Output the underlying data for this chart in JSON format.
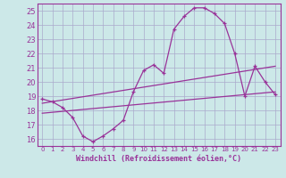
{
  "xlabel": "Windchill (Refroidissement éolien,°C)",
  "background_color": "#cce8e8",
  "grid_color": "#aaaacc",
  "line_color": "#993399",
  "xlim": [
    -0.5,
    23.5
  ],
  "ylim": [
    15.5,
    25.5
  ],
  "yticks": [
    16,
    17,
    18,
    19,
    20,
    21,
    22,
    23,
    24,
    25
  ],
  "xticks": [
    0,
    1,
    2,
    3,
    4,
    5,
    6,
    7,
    8,
    9,
    10,
    11,
    12,
    13,
    14,
    15,
    16,
    17,
    18,
    19,
    20,
    21,
    22,
    23
  ],
  "line1_x": [
    0,
    1,
    2,
    3,
    4,
    5,
    6,
    7,
    8,
    9,
    10,
    11,
    12,
    13,
    14,
    15,
    16,
    17,
    18,
    19,
    20,
    21,
    22,
    23
  ],
  "line1_y": [
    18.8,
    18.6,
    18.2,
    17.5,
    16.2,
    15.8,
    16.2,
    16.7,
    17.3,
    19.3,
    20.8,
    21.2,
    20.6,
    23.7,
    24.6,
    25.2,
    25.2,
    24.8,
    24.1,
    22.0,
    19.0,
    21.1,
    20.0,
    19.1
  ],
  "line2_x": [
    0,
    23
  ],
  "line2_y": [
    18.5,
    21.1
  ],
  "line3_x": [
    0,
    23
  ],
  "line3_y": [
    17.8,
    19.3
  ]
}
